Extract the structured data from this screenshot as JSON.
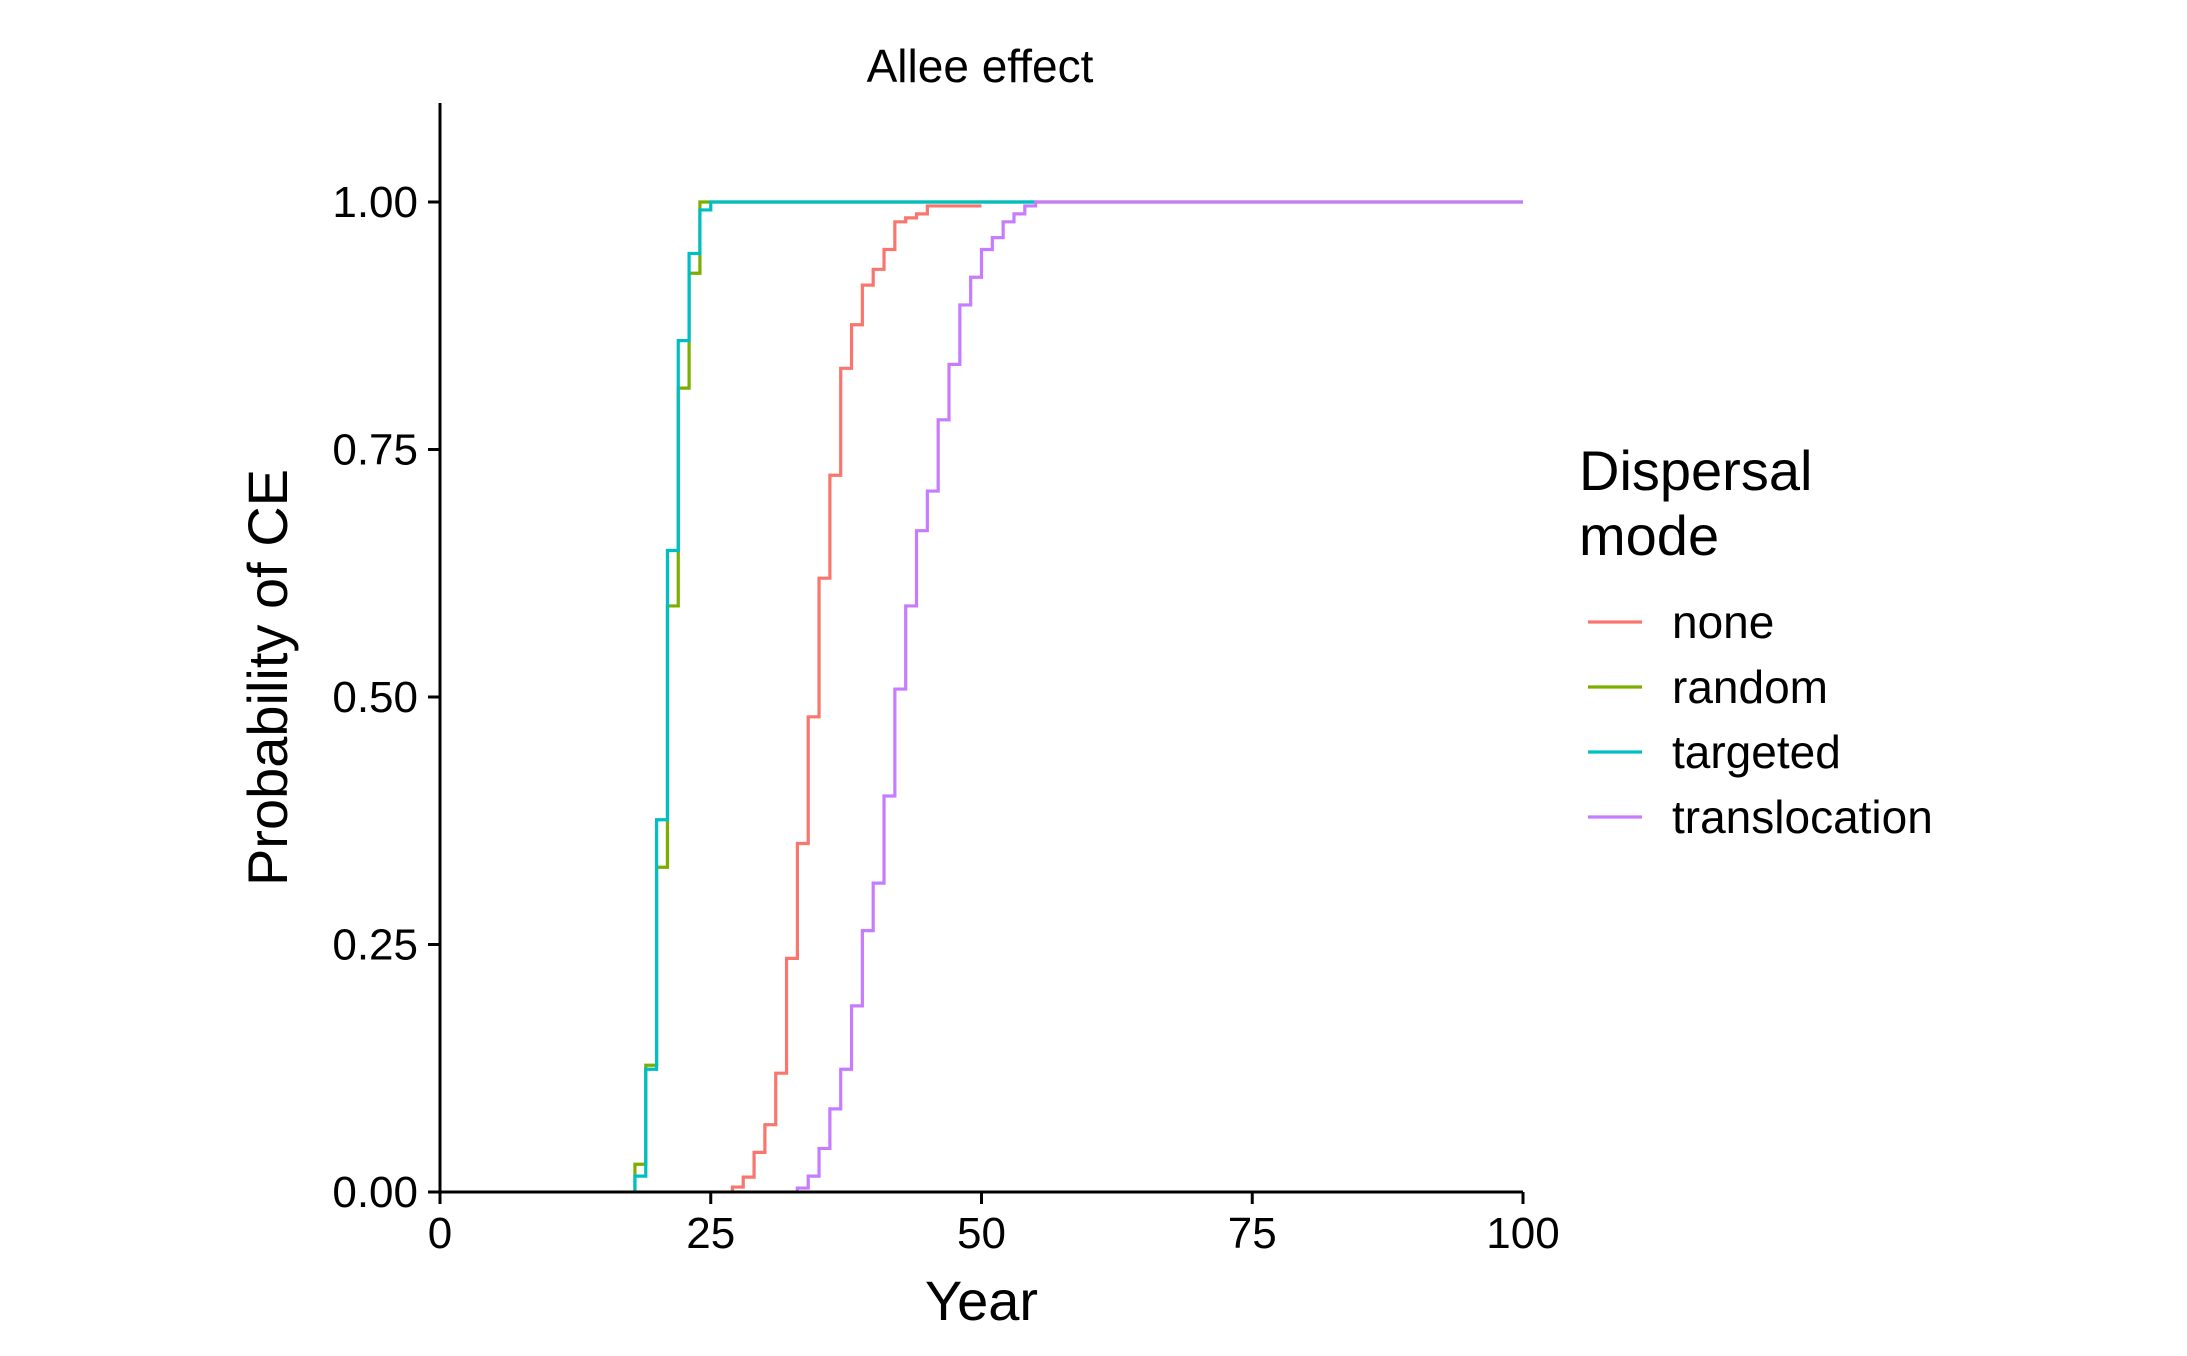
{
  "chart_data": {
    "type": "line",
    "step": true,
    "title": "Allee effect",
    "xlabel": "Year",
    "ylabel": "Probability of CE",
    "xlim": [
      0,
      100
    ],
    "ylim": [
      0,
      1.1
    ],
    "xticks": [
      0,
      25,
      50,
      75,
      100
    ],
    "xtick_labels": [
      "0",
      "25",
      "50",
      "75",
      "100"
    ],
    "yticks": [
      0,
      0.25,
      0.5,
      0.75,
      1.0
    ],
    "ytick_labels": [
      "0.00",
      "0.25",
      "0.50",
      "0.75",
      "1.00"
    ],
    "grid": false,
    "legend": {
      "title_lines": [
        "Dispersal",
        "mode"
      ],
      "position": "right"
    },
    "series": [
      {
        "name": "none",
        "color": "#F8766D",
        "x": [
          27,
          28,
          29,
          30,
          31,
          32,
          33,
          34,
          35,
          36,
          37,
          38,
          39,
          40,
          41,
          42,
          43,
          44,
          45,
          50
        ],
        "y": [
          0.005,
          0.015,
          0.04,
          0.068,
          0.12,
          0.236,
          0.352,
          0.48,
          0.62,
          0.724,
          0.832,
          0.876,
          0.916,
          0.932,
          0.952,
          0.98,
          0.984,
          0.988,
          0.996,
          0.996
        ]
      },
      {
        "name": "random",
        "color": "#7CAE00",
        "x": [
          18,
          19,
          20,
          21,
          22,
          23,
          24,
          100
        ],
        "y": [
          0.028,
          0.128,
          0.328,
          0.592,
          0.812,
          0.928,
          1.0,
          1.0
        ]
      },
      {
        "name": "targeted",
        "color": "#00BFC4",
        "x": [
          18,
          19,
          20,
          21,
          22,
          23,
          24,
          25,
          55
        ],
        "y": [
          0.016,
          0.124,
          0.376,
          0.648,
          0.86,
          0.948,
          0.992,
          1.0,
          1.0
        ]
      },
      {
        "name": "translocation",
        "color": "#C77CFF",
        "x": [
          33,
          34,
          35,
          36,
          37,
          38,
          39,
          40,
          41,
          42,
          43,
          44,
          45,
          46,
          47,
          48,
          49,
          50,
          51,
          52,
          53,
          54,
          55,
          100
        ],
        "y": [
          0.004,
          0.016,
          0.044,
          0.084,
          0.124,
          0.188,
          0.264,
          0.312,
          0.4,
          0.508,
          0.592,
          0.668,
          0.708,
          0.78,
          0.836,
          0.896,
          0.924,
          0.952,
          0.964,
          0.98,
          0.988,
          0.996,
          1.0,
          1.0
        ]
      }
    ]
  }
}
